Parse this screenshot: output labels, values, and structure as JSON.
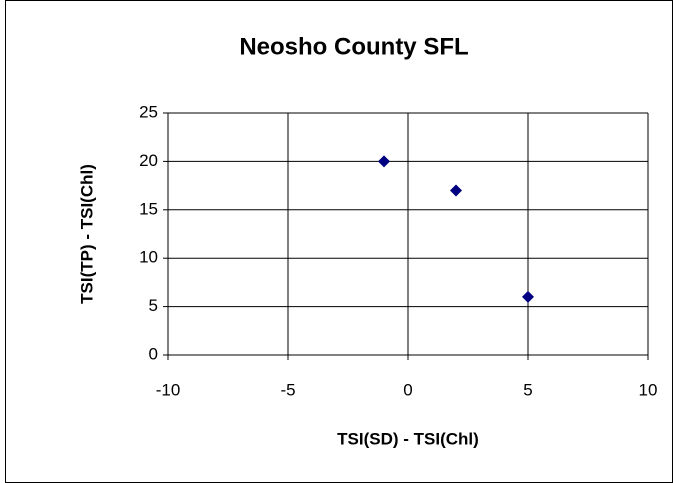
{
  "chart_data": {
    "type": "scatter",
    "title": "Neosho County SFL",
    "x_label": "TSI(SD) - TSI(Chl)",
    "y_label": "TSI(TP) - TSI(Chl)",
    "series": [
      {
        "color": "#000080",
        "x": [
          -1,
          2,
          5
        ],
        "values": [
          20,
          17,
          6
        ]
      }
    ],
    "xlim": [
      -10,
      10
    ],
    "xticks": [
      -10,
      -5,
      0,
      5,
      10
    ],
    "ylim": [
      0,
      25
    ],
    "yticks": [
      0,
      5,
      10,
      15,
      20,
      25
    ],
    "grid": true
  }
}
